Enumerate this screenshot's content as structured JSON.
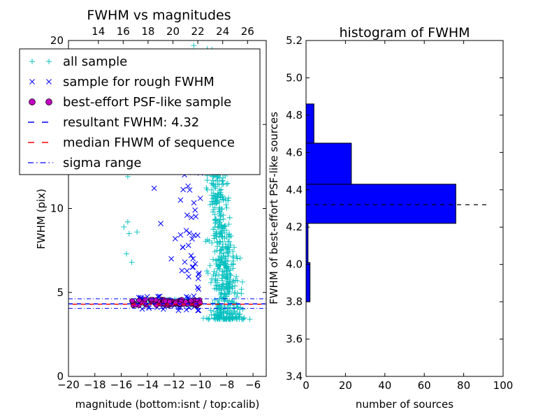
{
  "chart_data": [
    {
      "type": "scatter",
      "title": "FWHM vs magnitudes",
      "xlabel": "magnitude (bottom:isnt / top:calib)",
      "ylabel": "FWHM (pix)",
      "xlim": [
        -20,
        -5
      ],
      "ylim": [
        0,
        20
      ],
      "x_ticks": [
        -20,
        -18,
        -16,
        -14,
        -12,
        -10,
        -8,
        -6
      ],
      "x_tick_labels": [
        "−20",
        "−18",
        "−16",
        "−14",
        "−12",
        "−10",
        "−8",
        "−6"
      ],
      "y_ticks": [
        0,
        5,
        10,
        15,
        20
      ],
      "y_tick_labels": [
        "0",
        "5",
        "10",
        "",
        "20"
      ],
      "top_axis": {
        "xlim": [
          11.6,
          27.5
        ],
        "ticks": [
          14,
          16,
          18,
          20,
          22,
          24,
          26
        ],
        "tick_labels": [
          "14",
          "16",
          "18",
          "20",
          "22",
          "24",
          "26"
        ]
      },
      "series": [
        {
          "name": "all sample",
          "marker": "+",
          "color": "#00bfbf",
          "values": [
            [
              -15.8,
              8.9
            ],
            [
              -15.5,
              9.2
            ],
            [
              -15.4,
              8.5
            ],
            [
              -15.6,
              7.3
            ],
            [
              -15.2,
              6.8
            ],
            [
              -15.5,
              11.9
            ],
            [
              -14.8,
              8.6
            ],
            [
              -13.2,
              14.6
            ],
            [
              -12.5,
              15.3
            ],
            [
              -11.8,
              16.1
            ],
            [
              -10.9,
              19.3
            ],
            [
              -10.5,
              19.7
            ]
          ],
          "cluster": {
            "x_range": [
              -10.5,
              -6
            ],
            "y_range": [
              3.3,
              19.6
            ],
            "count": 700,
            "note": "dense band of points concentrated between x=-9 and x=-7"
          }
        },
        {
          "name": "sample for rough FWHM",
          "marker": "x",
          "color": "#0000ff",
          "values": [
            [
              -13.5,
              11.2
            ],
            [
              -13.0,
              9.1
            ],
            [
              -12.2,
              7.0
            ],
            [
              -11.9,
              8.2
            ],
            [
              -11.5,
              10.5
            ],
            [
              -11.2,
              12.0
            ],
            [
              -11.0,
              9.6
            ],
            [
              -10.9,
              7.8
            ],
            [
              -10.8,
              11.1
            ],
            [
              -10.6,
              6.5
            ],
            [
              -10.5,
              13.2
            ],
            [
              -10.4,
              9.9
            ],
            [
              -10.3,
              15.6
            ],
            [
              -10.2,
              5.3
            ],
            [
              -10.9,
              4.6
            ],
            [
              -11.5,
              4.1
            ],
            [
              -12.3,
              4.5
            ],
            [
              -12.8,
              4.0
            ],
            [
              -14.5,
              4.7
            ],
            [
              -10.1,
              12.6
            ],
            [
              -10.0,
              10.6
            ],
            [
              -10.2,
              8.4
            ],
            [
              -11.4,
              6.3
            ],
            [
              -10.7,
              7.2
            ]
          ]
        },
        {
          "name": "best-effort PSF-like sample",
          "marker": "o",
          "color": "#bf00bf",
          "x_range": [
            -15.3,
            -10.0
          ],
          "y_range": [
            4.22,
            4.58
          ],
          "count": 90
        },
        {
          "name": "resultant FWHM: 4.32",
          "line": "dashed",
          "color": "#0000ff",
          "y": 4.32
        },
        {
          "name": "median FHWM of sequence",
          "line": "dashed",
          "color": "#ff0000",
          "y": 4.32
        },
        {
          "name": "sigma range",
          "line": "dashdot",
          "color": "#0000ff",
          "y": [
            4.05,
            4.62
          ]
        }
      ],
      "legend": "top-left"
    },
    {
      "type": "bar",
      "orientation": "horizontal",
      "title": "histogram of FWHM",
      "xlabel": "number of sources",
      "ylabel": "FWHM of best-effort PSF-like sources",
      "xlim": [
        0,
        100
      ],
      "ylim": [
        3.4,
        5.2
      ],
      "x_ticks": [
        0,
        20,
        40,
        60,
        80,
        100
      ],
      "x_tick_labels": [
        "0",
        "20",
        "40",
        "60",
        "80",
        "100"
      ],
      "y_ticks": [
        3.4,
        3.6,
        3.8,
        4.0,
        4.2,
        4.4,
        4.6,
        4.8,
        5.0,
        5.2
      ],
      "y_tick_labels": [
        "3.4",
        "3.6",
        "3.8",
        "4.0",
        "4.2",
        "4.4",
        "4.6",
        "4.8",
        "5.0",
        "5.2"
      ],
      "bins": [
        {
          "from": 3.8,
          "to": 4.01,
          "value": 2
        },
        {
          "from": 4.01,
          "to": 4.22,
          "value": 1
        },
        {
          "from": 4.22,
          "to": 4.43,
          "value": 76
        },
        {
          "from": 4.43,
          "to": 4.65,
          "value": 23
        },
        {
          "from": 4.65,
          "to": 4.86,
          "value": 4
        }
      ],
      "bar_color": "#0000ff",
      "reference_line": {
        "y": 4.32,
        "x_to": 92,
        "style": "dashed",
        "color": "#000000"
      }
    }
  ]
}
